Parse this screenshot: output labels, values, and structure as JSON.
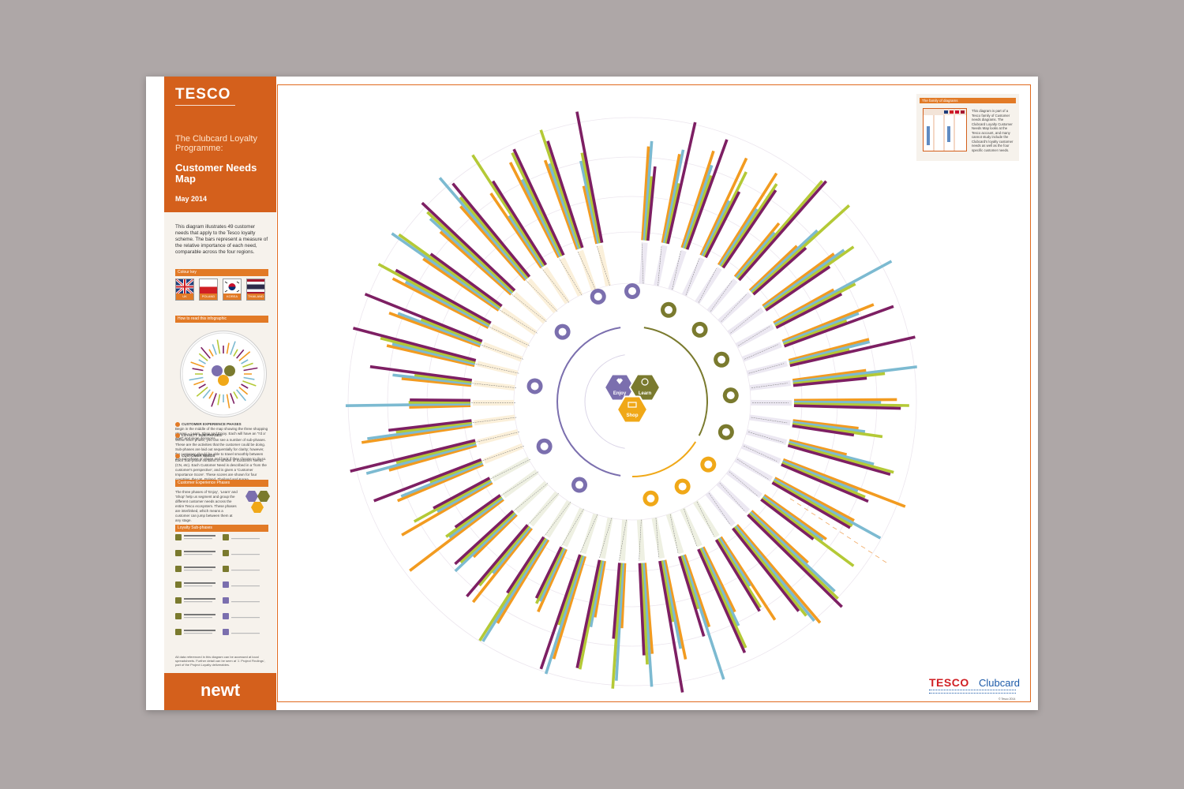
{
  "sidebar": {
    "brand": "TESCO",
    "subtitle_1": "The Clubcard Loyalty Programme:",
    "subtitle_2": "Customer Needs Map",
    "date": "May 2014",
    "intro": "This diagram illustrates 49 customer needs that apply to the Tesco loyalty scheme. The bars represent a measure of the relative importance of each need, comparable across the four regions.",
    "colour_key_title": "Colour key",
    "flags": [
      {
        "label": "UK",
        "colors": [
          "#1f3d7a",
          "#d01f24",
          "#ffffff"
        ]
      },
      {
        "label": "POLAND",
        "colors": [
          "#ffffff",
          "#d01f24"
        ]
      },
      {
        "label": "KOREA",
        "colors": [
          "#ffffff",
          "#c8102e",
          "#003478"
        ]
      },
      {
        "label": "THAILAND",
        "colors": [
          "#a51931",
          "#f4f5f8",
          "#2d2a4a"
        ]
      }
    ],
    "how_to_title": "How to read this infographic",
    "legend": [
      {
        "title": "CUSTOMER EXPERIENCE PHASES",
        "text": "Begin in the middle of the map showing the three shopping phases – Learn, Shop and Enjoy. Each will have an \"I'd a' start\" and more decisions."
      },
      {
        "title": "LOYALTY SUB-PHASES",
        "text": "Within each phase, you can see a number of sub-phases. These are the activities that the customer could be doing. Sub-phases are laid out sequentially for clarity; however, the customer should be able to travel smoothly between any sub-phase or phase and back if they choose to do so."
      },
      {
        "title": "CUSTOMER NEEDS",
        "text": "Each Sub-phase contains a number of Customer Needs (CN, etc). Each Customer Need is described in a 'from the customer's perspective', and is given a 'Customer Importance Score'. These scores are shown for four countries: the UK, Poland, Thailand and Korea."
      }
    ],
    "phases_title": "Customer Experience Phases",
    "phases_text": "The three phases of 'Enjoy', 'Learn' and 'Shop' help us segment and group the different customer needs across the entire Tesco ecosystem. These phases are interlinked, which means a customer can jump between them at any stage.",
    "subphases_title": "Loyalty Sub-phases",
    "fine_print": "All data referenced in this diagram can be accessed at local spreadsheets. Further detail can be seen at 'J. Project Findings', part of the Project Loyalty deliverables.",
    "footer_logo": "newt"
  },
  "family": {
    "title": "The family of diagrams",
    "text": "This diagram is part of a Tesco family of Customer needs diagrams. The Clubcard Loyalty Customer Needs Map looks at the Tesco account, and many cannot study include the Clubcard's loyalty customer needs as well as the four specific customer needs."
  },
  "center": {
    "phases": [
      "Enjoy",
      "Learn",
      "Shop"
    ],
    "colors": {
      "enjoy": "#7b6fae",
      "learn": "#7a7a2e",
      "shop": "#f0a818"
    }
  },
  "series_colors": {
    "uk": "#7cbad1",
    "poland": "#b4c936",
    "korea": "#7d1f63",
    "thailand": "#f29b20"
  },
  "footer_brand": {
    "tesco": "TESCO",
    "clubcard": "Clubcard",
    "copyright": "© Tesco 2014"
  }
}
